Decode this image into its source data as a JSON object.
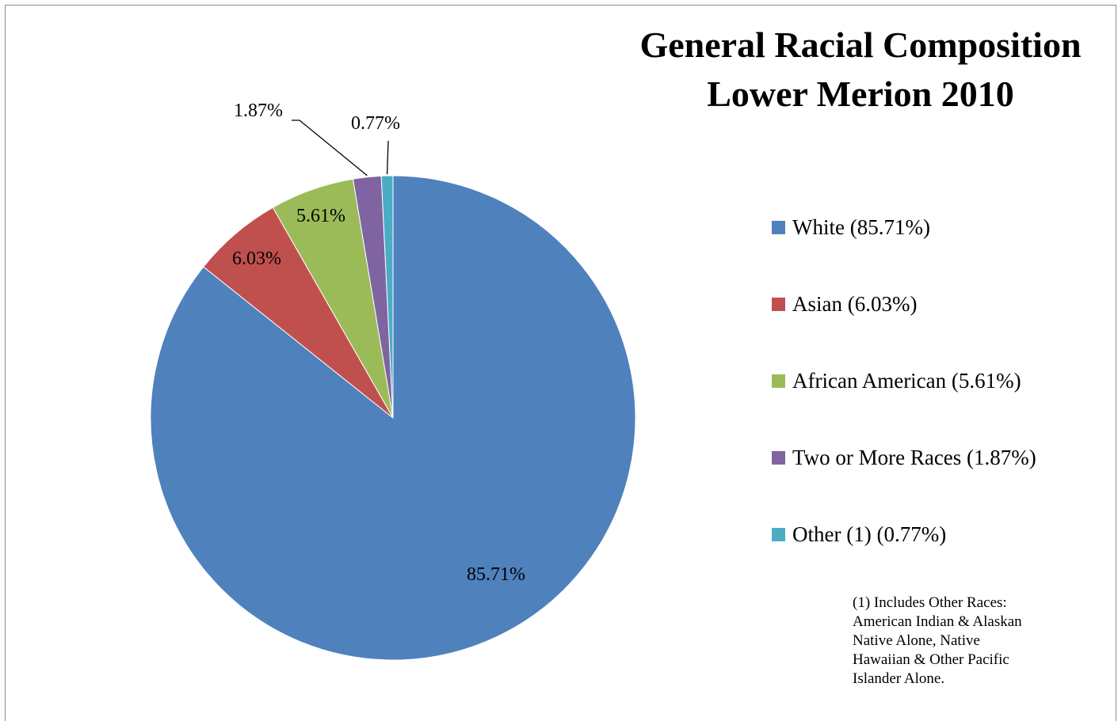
{
  "chart_data": {
    "type": "pie",
    "title": "General Racial Composition Lower Merion 2010",
    "title_lines": [
      "General Racial Composition",
      "Lower Merion 2010"
    ],
    "categories": [
      "White",
      "Asian",
      "African American",
      "Two or More Races",
      "Other (1)"
    ],
    "values": [
      85.71,
      6.03,
      5.61,
      1.87,
      0.77
    ],
    "data_labels": [
      "85.71%",
      "6.03%",
      "5.61%",
      "1.87%",
      "0.77%"
    ],
    "legend": [
      "White (85.71%)",
      "Asian (6.03%)",
      "African American (5.61%)",
      "Two or More Races (1.87%)",
      "Other (1) (0.77%)"
    ],
    "colors": [
      "#4F81BD",
      "#C0504D",
      "#9BBB59",
      "#8064A2",
      "#4BACC6"
    ],
    "legend_position": "right",
    "footnote": "(1) Includes Other Races:\nAmerican Indian & Alaskan\nNative Alone, Native\nHawaiian & Other Pacific\nIslander Alone."
  }
}
